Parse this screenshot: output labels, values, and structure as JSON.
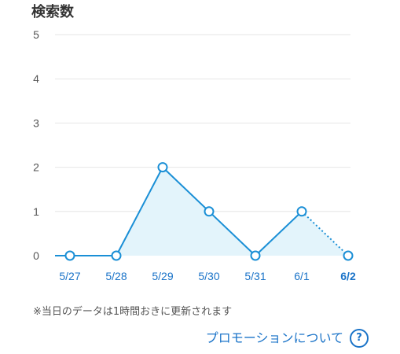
{
  "chart_data": {
    "type": "line",
    "title": "検索数",
    "categories": [
      "5/27",
      "5/28",
      "5/29",
      "5/30",
      "5/31",
      "6/1",
      "6/2"
    ],
    "values": [
      0,
      0,
      2,
      1,
      0,
      1,
      0
    ],
    "highlighted_category": "6/2",
    "ylim": [
      0,
      5
    ],
    "yticks": [
      "0",
      "1",
      "2",
      "3",
      "4",
      "5"
    ],
    "grid": true,
    "last_segment_dotted": true,
    "colors": {
      "line": "#1a8fd6",
      "fill": "#e3f4fb",
      "grid": "#e6e6e6",
      "tick": "#555555",
      "x_tick": "#1a73c8",
      "marker_fill": "#ffffff"
    }
  },
  "footer": {
    "note": "※当日のデータは1時間おきに更新されます",
    "promo_link_label": "プロモーションについて",
    "help_icon_glyph": "?"
  }
}
